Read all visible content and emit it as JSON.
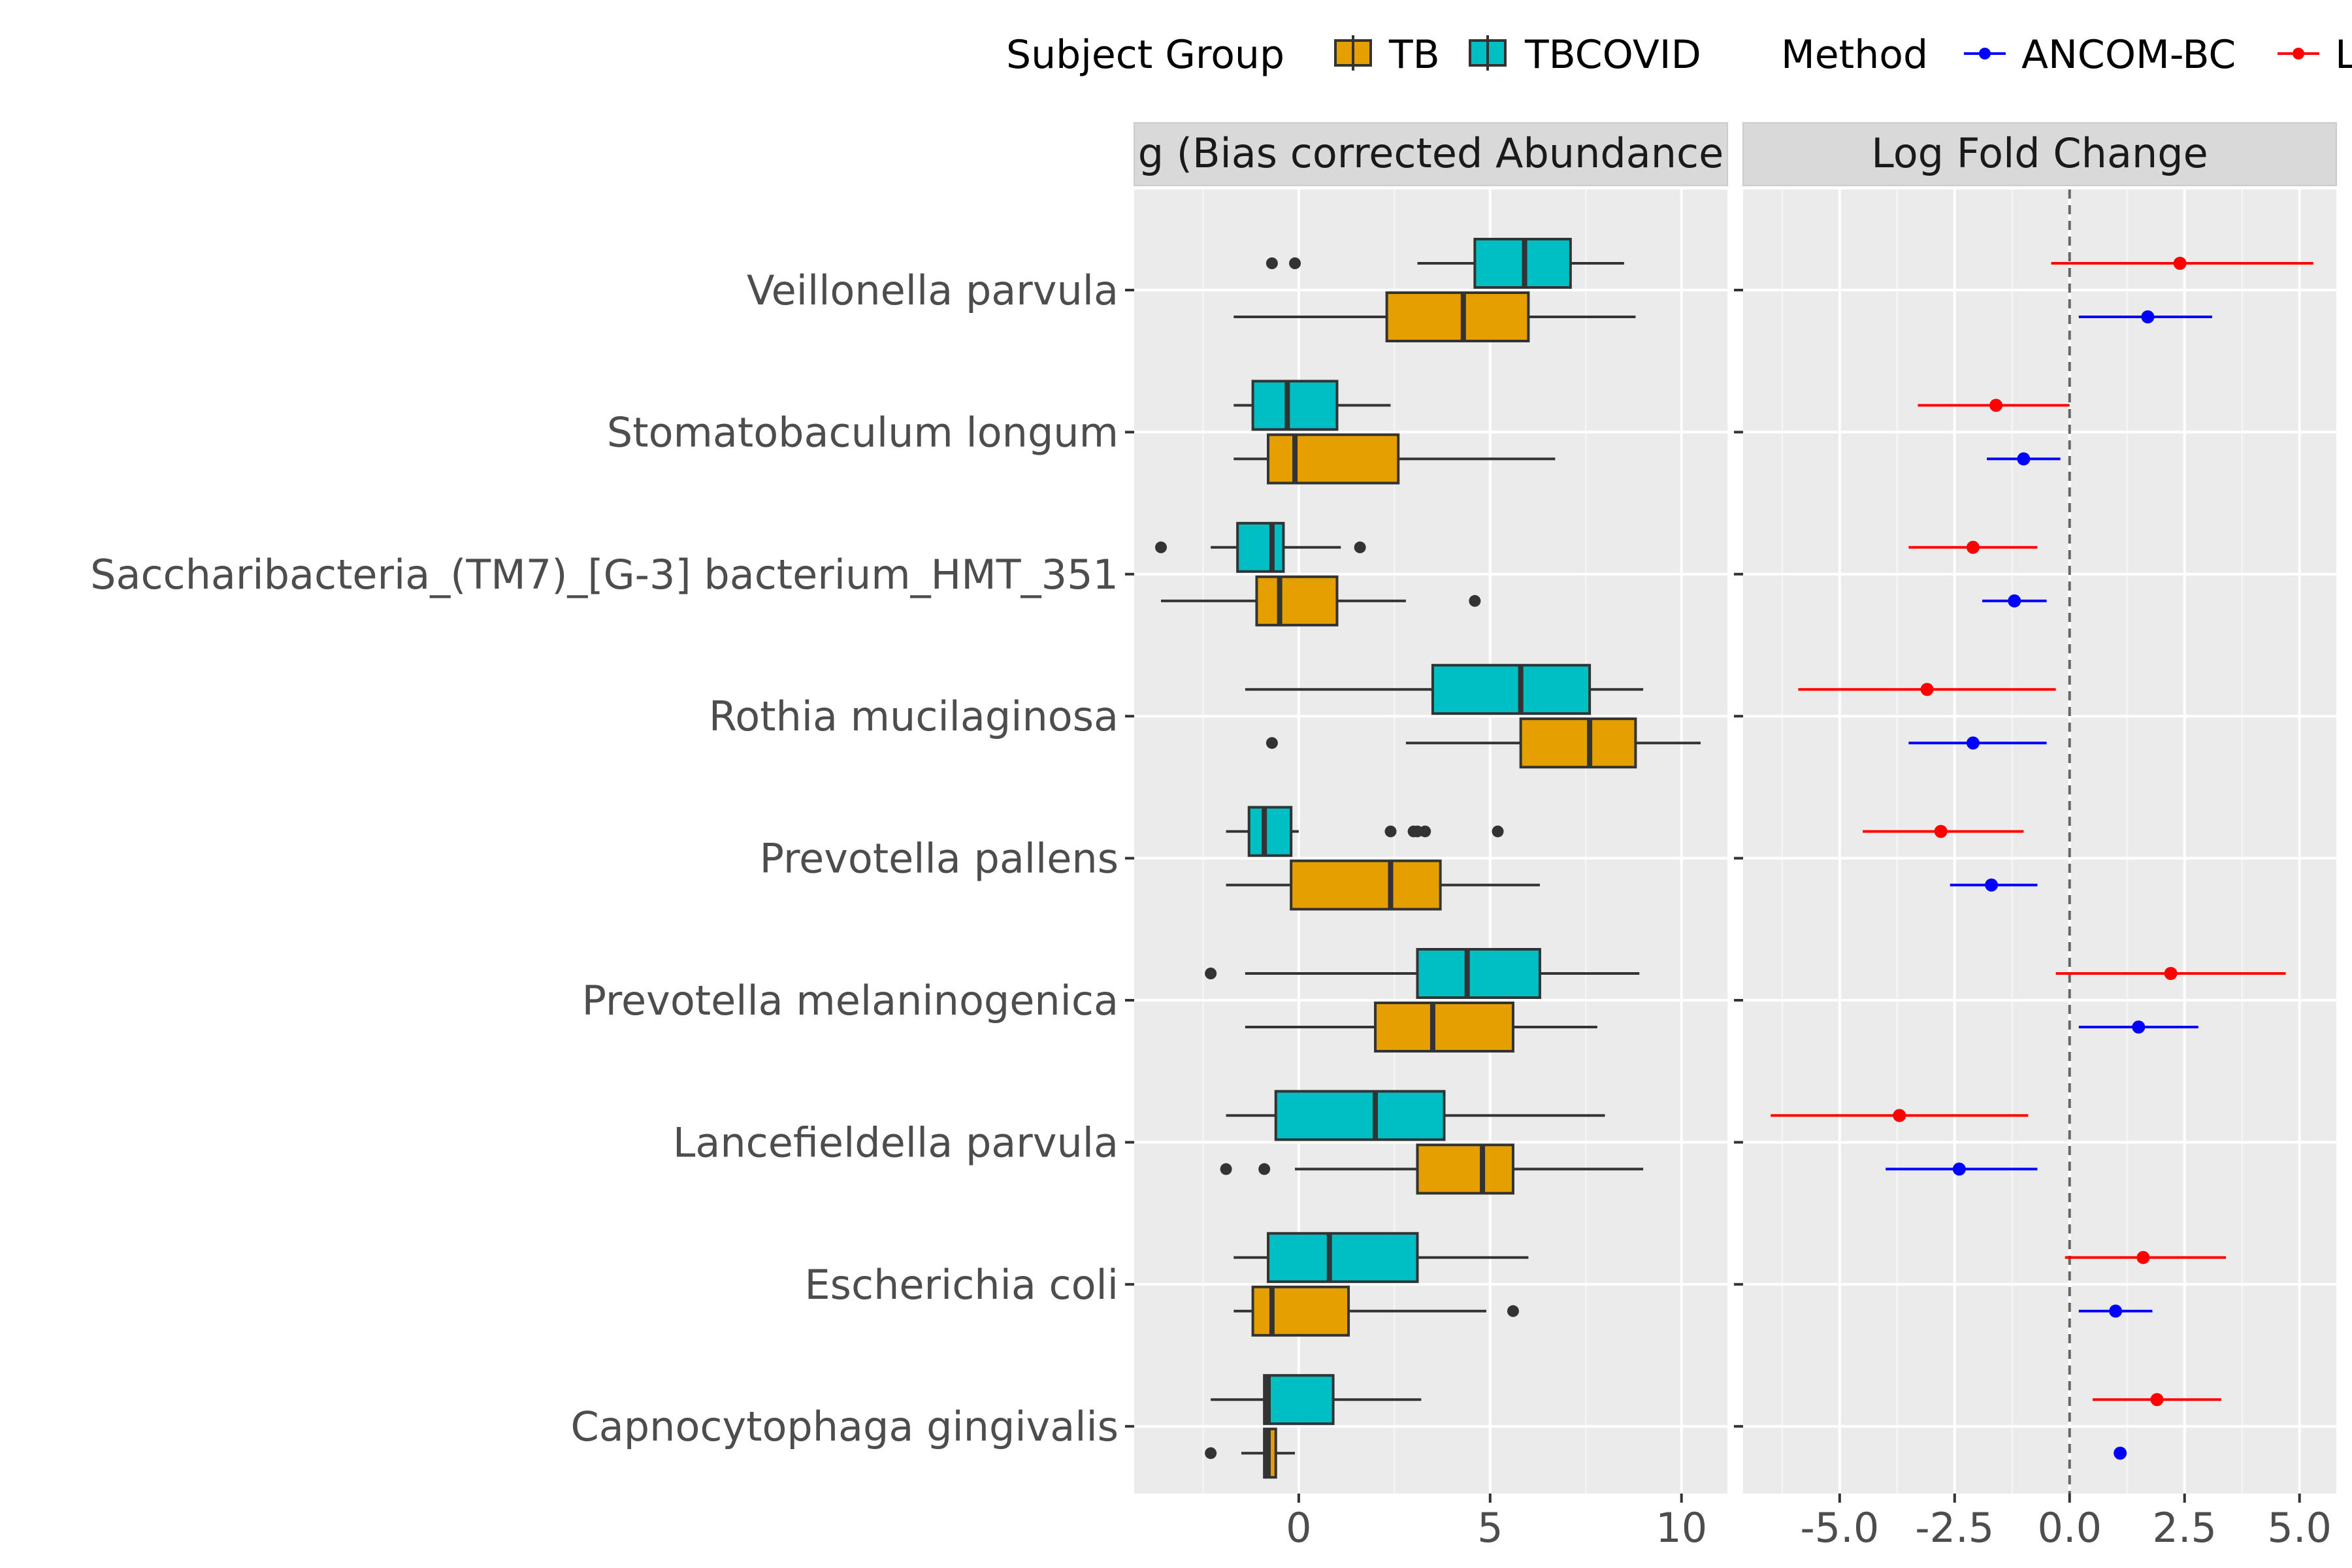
{
  "legend": {
    "group_title": "Subject Group",
    "groups": [
      {
        "label": "TB",
        "color": "#E69F00"
      },
      {
        "label": "TBCOVID",
        "color": "#00BFC4"
      }
    ],
    "method_title": "Method",
    "methods": [
      {
        "label": "ANCOM-BC",
        "color": "#0000FF"
      },
      {
        "label": "L",
        "color": "#FF0000"
      }
    ]
  },
  "chart_data": [
    {
      "type": "boxplot",
      "title": "g (Bias corrected Abundance",
      "orientation": "horizontal",
      "xlim": [
        -4.3,
        11.2
      ],
      "xticks": [
        0,
        5,
        10
      ],
      "xtick_labels": [
        "0",
        "5",
        "10"
      ],
      "grid": true,
      "categories": [
        "Veillonella parvula",
        "Stomatobaculum longum",
        "Saccharibacteria_(TM7)_[G-3] bacterium_HMT_351",
        "Rothia mucilaginosa",
        "Prevotella pallens",
        "Prevotella melaninogenica",
        "Lancefieldella parvula",
        "Escherichia coli",
        "Capnocytophaga gingivalis"
      ],
      "series": [
        {
          "name": "TBCOVID",
          "color": "#00BFC4",
          "boxes": [
            {
              "min": 3.1,
              "q1": 4.6,
              "median": 5.9,
              "q3": 7.1,
              "max": 8.5,
              "outliers": [
                -0.7,
                -0.1
              ]
            },
            {
              "min": -1.7,
              "q1": -1.2,
              "median": -0.3,
              "q3": 1.0,
              "max": 2.4,
              "outliers": []
            },
            {
              "min": -2.3,
              "q1": -1.6,
              "median": -0.7,
              "q3": -0.4,
              "max": 1.1,
              "outliers": [
                -3.6,
                1.6
              ]
            },
            {
              "min": -1.4,
              "q1": 3.5,
              "median": 5.8,
              "q3": 7.6,
              "max": 9.0,
              "outliers": []
            },
            {
              "min": -1.9,
              "q1": -1.3,
              "median": -0.9,
              "q3": -0.2,
              "max": 0.0,
              "outliers": [
                2.4,
                3.0,
                3.1,
                3.3,
                5.2
              ]
            },
            {
              "min": -1.4,
              "q1": 3.1,
              "median": 4.4,
              "q3": 6.3,
              "max": 8.9,
              "outliers": [
                -2.3
              ]
            },
            {
              "min": -1.9,
              "q1": -0.6,
              "median": 2.0,
              "q3": 3.8,
              "max": 8.0,
              "outliers": []
            },
            {
              "min": -1.7,
              "q1": -0.8,
              "median": 0.8,
              "q3": 3.1,
              "max": 6.0,
              "outliers": []
            },
            {
              "min": -2.3,
              "q1": -0.9,
              "median": -0.8,
              "q3": 0.9,
              "max": 3.2,
              "outliers": []
            }
          ]
        },
        {
          "name": "TB",
          "color": "#E69F00",
          "boxes": [
            {
              "min": -1.7,
              "q1": 2.3,
              "median": 4.3,
              "q3": 6.0,
              "max": 8.8,
              "outliers": []
            },
            {
              "min": -1.7,
              "q1": -0.8,
              "median": -0.1,
              "q3": 2.6,
              "max": 6.7,
              "outliers": []
            },
            {
              "min": -3.6,
              "q1": -1.1,
              "median": -0.5,
              "q3": 1.0,
              "max": 2.8,
              "outliers": [
                4.6
              ]
            },
            {
              "min": 2.8,
              "q1": 5.8,
              "median": 7.6,
              "q3": 8.8,
              "max": 10.5,
              "outliers": [
                -0.7
              ]
            },
            {
              "min": -1.9,
              "q1": -0.2,
              "median": 2.4,
              "q3": 3.7,
              "max": 6.3,
              "outliers": []
            },
            {
              "min": -1.4,
              "q1": 2.0,
              "median": 3.5,
              "q3": 5.6,
              "max": 7.8,
              "outliers": []
            },
            {
              "min": -0.1,
              "q1": 3.1,
              "median": 4.8,
              "q3": 5.6,
              "max": 9.0,
              "outliers": [
                -1.9,
                -0.9
              ]
            },
            {
              "min": -1.7,
              "q1": -1.2,
              "median": -0.7,
              "q3": 1.3,
              "max": 4.9,
              "outliers": [
                5.6
              ]
            },
            {
              "min": -1.5,
              "q1": -0.9,
              "median": -0.8,
              "q3": -0.6,
              "max": -0.1,
              "outliers": [
                -2.3
              ]
            }
          ]
        }
      ]
    },
    {
      "type": "scatter",
      "subtype": "pointrange",
      "title": "Log Fold Change",
      "orientation": "horizontal",
      "xlim": [
        -7.1,
        5.8
      ],
      "xticks": [
        -5.0,
        -2.5,
        0.0,
        2.5,
        5.0
      ],
      "xtick_labels": [
        "-5.0",
        "-2.5",
        "0.0",
        "2.5",
        "5.0"
      ],
      "reference_line": 0.0,
      "grid": true,
      "categories": [
        "Veillonella parvula",
        "Stomatobaculum longum",
        "Saccharibacteria_(TM7)_[G-3] bacterium_HMT_351",
        "Rothia mucilaginosa",
        "Prevotella pallens",
        "Prevotella melaninogenica",
        "Lancefieldella parvula",
        "Escherichia coli",
        "Capnocytophaga gingivalis"
      ],
      "series": [
        {
          "name": "L",
          "color": "#FF0000",
          "points": [
            {
              "estimate": 2.4,
              "lower": -0.4,
              "upper": 5.3
            },
            {
              "estimate": -1.6,
              "lower": -3.3,
              "upper": 0.0
            },
            {
              "estimate": -2.1,
              "lower": -3.5,
              "upper": -0.7
            },
            {
              "estimate": -3.1,
              "lower": -5.9,
              "upper": -0.3
            },
            {
              "estimate": -2.8,
              "lower": -4.5,
              "upper": -1.0
            },
            {
              "estimate": 2.2,
              "lower": -0.3,
              "upper": 4.7
            },
            {
              "estimate": -3.7,
              "lower": -6.5,
              "upper": -0.9
            },
            {
              "estimate": 1.6,
              "lower": -0.1,
              "upper": 3.4
            },
            {
              "estimate": 1.9,
              "lower": 0.5,
              "upper": 3.3
            }
          ]
        },
        {
          "name": "ANCOM-BC",
          "color": "#0000FF",
          "points": [
            {
              "estimate": 1.7,
              "lower": 0.2,
              "upper": 3.1
            },
            {
              "estimate": -1.0,
              "lower": -1.8,
              "upper": -0.2
            },
            {
              "estimate": -1.2,
              "lower": -1.9,
              "upper": -0.5
            },
            {
              "estimate": -2.1,
              "lower": -3.5,
              "upper": -0.5
            },
            {
              "estimate": -1.7,
              "lower": -2.6,
              "upper": -0.7
            },
            {
              "estimate": 1.5,
              "lower": 0.2,
              "upper": 2.8
            },
            {
              "estimate": -2.4,
              "lower": -4.0,
              "upper": -0.7
            },
            {
              "estimate": 1.0,
              "lower": 0.2,
              "upper": 1.8
            },
            {
              "estimate": 1.1,
              "lower": 1.1,
              "upper": 1.1
            }
          ]
        }
      ]
    }
  ]
}
